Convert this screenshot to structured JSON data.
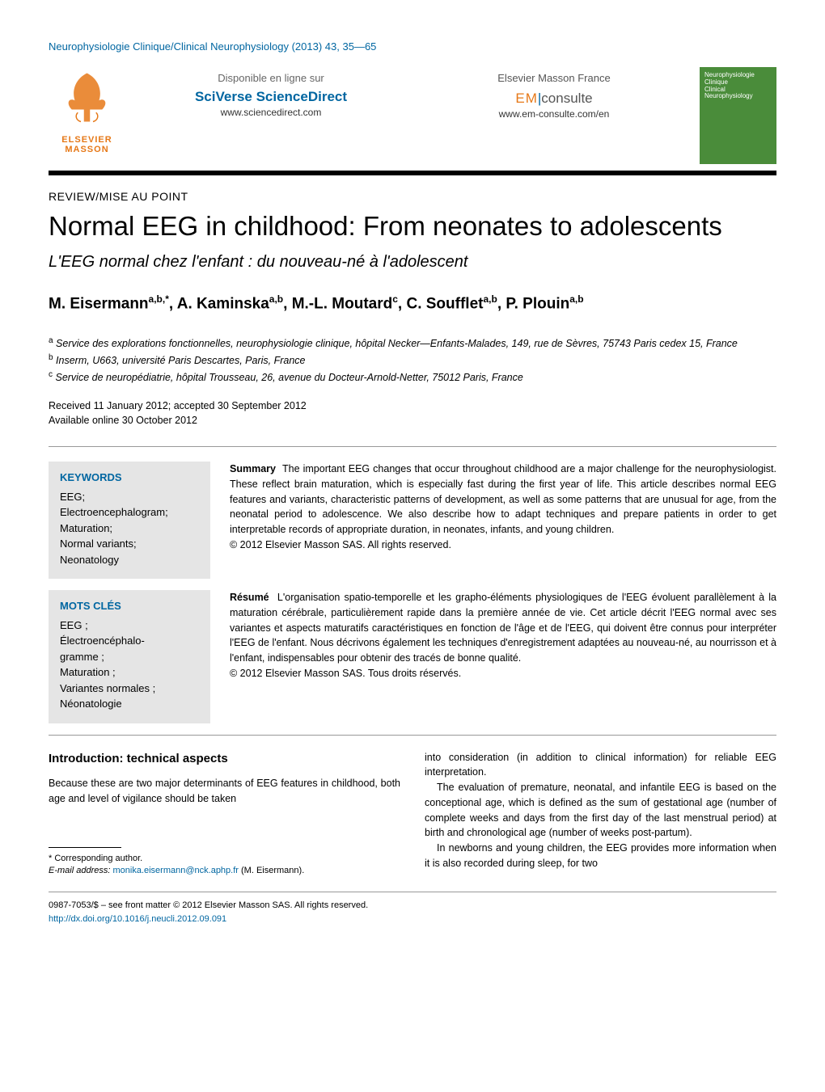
{
  "journal_ref": "Neurophysiologie Clinique/Clinical Neurophysiology (2013) 43, 35—65",
  "header": {
    "publisher_name_1": "ELSEVIER",
    "publisher_name_2": "MASSON",
    "left_col": {
      "label": "Disponible en ligne sur",
      "brand": "SciVerse ScienceDirect",
      "url": "www.sciencedirect.com"
    },
    "right_col": {
      "label": "Elsevier Masson France",
      "brand_em": "EM",
      "brand_consulte": "consulte",
      "url": "www.em-consulte.com/en"
    },
    "cover_lines": [
      "Neurophysiologie",
      "Clinique",
      "Clinical",
      "Neurophysiology"
    ]
  },
  "article_type": "REVIEW/MISE AU POINT",
  "title": "Normal EEG in childhood: From neonates to adolescents",
  "subtitle": "L'EEG normal chez l'enfant : du nouveau-né à l'adolescent",
  "authors_html": "M. Eisermann<sup>a,b,*</sup>, A. Kaminska<sup>a,b</sup>, M.-L. Moutard<sup>c</sup>, C. Soufflet<sup>a,b</sup>, P. Plouin<sup>a,b</sup>",
  "affiliations": [
    {
      "sup": "a",
      "text": "Service des explorations fonctionnelles, neurophysiologie clinique, hôpital Necker—Enfants-Malades, 149, rue de Sèvres, 75743 Paris cedex 15, France"
    },
    {
      "sup": "b",
      "text": "Inserm, U663, université Paris Descartes, Paris, France"
    },
    {
      "sup": "c",
      "text": "Service de neuropédiatrie, hôpital Trousseau, 26, avenue du Docteur-Arnold-Netter, 75012 Paris, France"
    }
  ],
  "dates": {
    "received_accepted": "Received 11 January 2012; accepted 30 September 2012",
    "online": "Available online 30 October 2012"
  },
  "keywords_en": {
    "head": "KEYWORDS",
    "items": "EEG;\nElectroencephalogram;\nMaturation;\nNormal variants;\nNeonatology"
  },
  "keywords_fr": {
    "head": "MOTS CLÉS",
    "items": "EEG ;\nÉlectroencéphalo-\ngramme ;\nMaturation ;\nVariantes normales ;\nNéonatologie"
  },
  "summary": {
    "lead": "Summary",
    "body": "The important EEG changes that occur throughout childhood are a major challenge for the neurophysiologist. These reflect brain maturation, which is especially fast during the first year of life. This article describes normal EEG features and variants, characteristic patterns of development, as well as some patterns that are unusual for age, from the neonatal period to adolescence. We also describe how to adapt techniques and prepare patients in order to get interpretable records of appropriate duration, in neonates, infants, and young children.",
    "copyright": "© 2012 Elsevier Masson SAS. All rights reserved."
  },
  "resume": {
    "lead": "Résumé",
    "body": "L'organisation spatio-temporelle et les grapho-éléments physiologiques de l'EEG évoluent parallèlement à la maturation cérébrale, particulièrement rapide dans la première année de vie. Cet article décrit l'EEG normal avec ses variantes et aspects maturatifs caractéristiques en fonction de l'âge et de l'EEG, qui doivent être connus pour interpréter l'EEG de l'enfant. Nous décrivons également les techniques d'enregistrement adaptées au nouveau-né, au nourrisson et à l'enfant, indispensables pour obtenir des tracés de bonne qualité.",
    "copyright": "© 2012 Elsevier Masson SAS. Tous droits réservés."
  },
  "section_head": "Introduction: technical aspects",
  "col_left_p1": "Because these are two major determinants of EEG features in childhood, both age and level of vigilance should be taken",
  "col_right_p1": "into consideration (in addition to clinical information) for reliable EEG interpretation.",
  "col_right_p2": "The evaluation of premature, neonatal, and infantile EEG is based on the conceptional age, which is defined as the sum of gestational age (number of complete weeks and days from the first day of the last menstrual period) at birth and chronological age (number of weeks post-partum).",
  "col_right_p3": "In newborns and young children, the EEG provides more information when it is also recorded during sleep, for two",
  "corresponding": {
    "label": "* Corresponding author.",
    "email_label": "E-mail address:",
    "email": "monika.eisermann@nck.aphp.fr",
    "email_author": "(M. Eisermann)."
  },
  "footer": {
    "line1": "0987-7053/$ – see front matter © 2012 Elsevier Masson SAS. All rights reserved.",
    "doi": "http://dx.doi.org/10.1016/j.neucli.2012.09.091"
  },
  "colors": {
    "link": "#0066a1",
    "orange": "#e67817",
    "kw_bg": "#e5e5e5",
    "cover_bg": "#4a8c3a"
  }
}
